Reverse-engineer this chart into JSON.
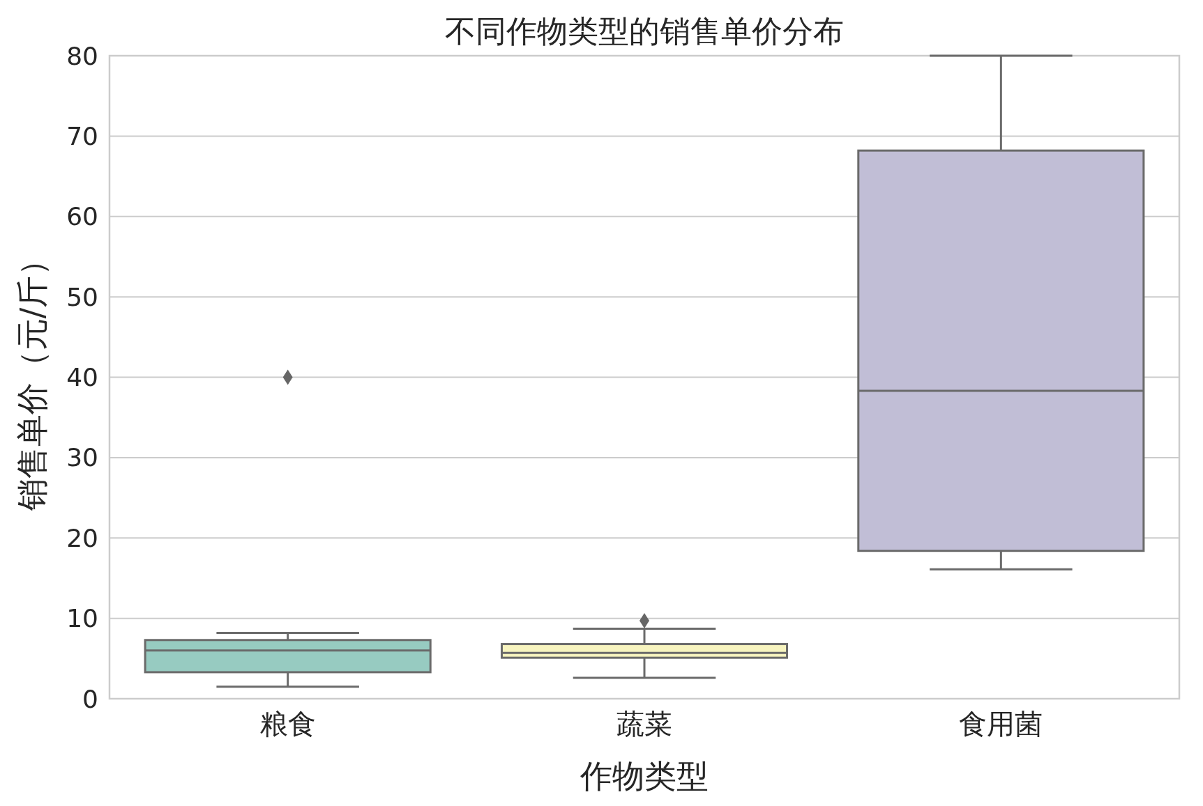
{
  "chart_data": {
    "type": "box",
    "title": "不同作物类型的销售单价分布",
    "xlabel": "作物类型",
    "ylabel": "销售单价（元/斤）",
    "categories": [
      "粮食",
      "蔬菜",
      "食用菌"
    ],
    "colors": [
      "#97cbc1",
      "#f7f4bf",
      "#c1bed6"
    ],
    "boxes": [
      {
        "low": 1.5,
        "q1": 3.3,
        "median": 6.0,
        "q3": 7.3,
        "high": 8.2,
        "outliers": [
          40.0
        ]
      },
      {
        "low": 2.6,
        "q1": 5.1,
        "median": 5.7,
        "q3": 6.8,
        "high": 8.7,
        "outliers": [
          9.7
        ]
      },
      {
        "low": 16.1,
        "q1": 18.4,
        "median": 38.3,
        "q3": 68.2,
        "high": 80.0
      }
    ],
    "ylim": [
      0,
      80
    ],
    "yticks": [
      0,
      10,
      20,
      30,
      40,
      50,
      60,
      70,
      80
    ],
    "grid": "y",
    "marker": "diamond"
  }
}
